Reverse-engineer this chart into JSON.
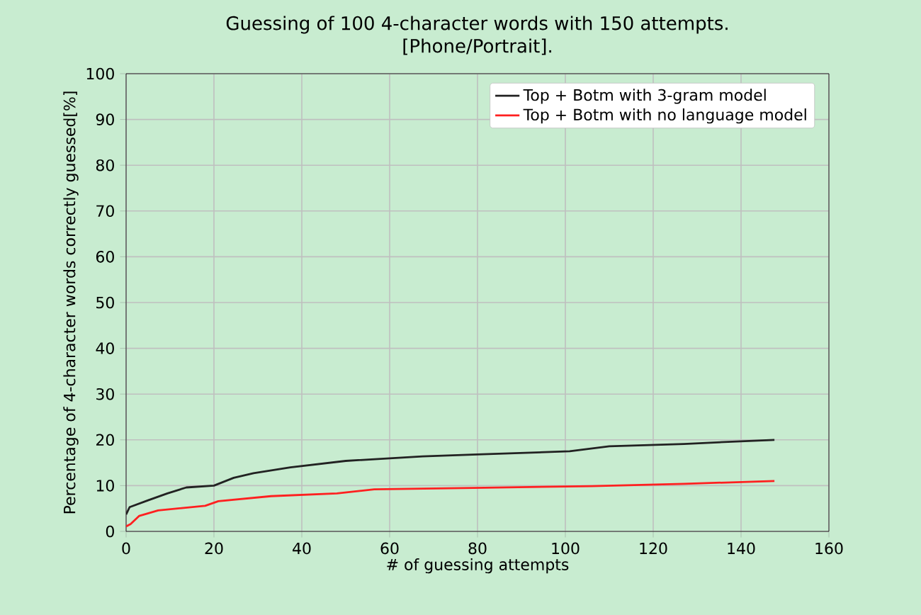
{
  "chart_data": {
    "type": "line",
    "title": "Guessing of 100 4-character words with 150 attempts.\n[Phone/Portrait].",
    "xlabel": "# of guessing attempts",
    "ylabel": "Percentage of 4-character words correctly guessed[%]",
    "xlim": [
      0,
      160
    ],
    "xticks": [
      0,
      20,
      40,
      60,
      80,
      100,
      120,
      140,
      160
    ],
    "ylim": [
      0,
      100
    ],
    "yticks": [
      0,
      10,
      20,
      30,
      40,
      50,
      60,
      70,
      80,
      90,
      100
    ],
    "grid": true,
    "legend": "top right",
    "marker": "none",
    "line_style": "solid",
    "series": [
      {
        "name": "Top + Botm with 3-gram model",
        "color": "#222222",
        "x": [
          0,
          0.8,
          5,
          9.4,
          13.7,
          20,
          24.5,
          29,
          37.4,
          50,
          67.5,
          80,
          101,
          110,
          127,
          138,
          147.6
        ],
        "values": [
          3.7,
          5.3,
          6.8,
          8.3,
          9.6,
          10,
          11.7,
          12.7,
          14,
          15.4,
          16.4,
          16.8,
          17.5,
          18.6,
          19.1,
          19.6,
          20
        ]
      },
      {
        "name": "Top + Botm with no language model",
        "color": "#ff2020",
        "x": [
          0,
          1,
          3,
          7.3,
          18,
          21,
          33,
          48,
          56.5,
          79,
          106,
          127,
          147.6
        ],
        "values": [
          1.1,
          1.6,
          3.4,
          4.6,
          5.6,
          6.6,
          7.7,
          8.3,
          9.2,
          9.5,
          9.9,
          10.4,
          11
        ]
      }
    ]
  }
}
